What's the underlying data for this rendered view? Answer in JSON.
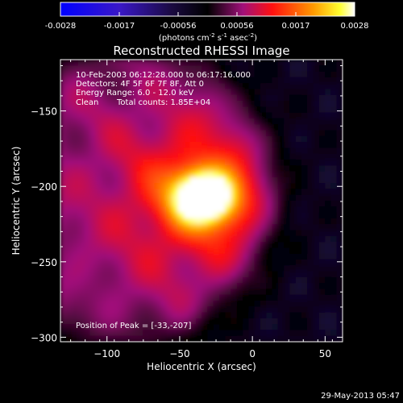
{
  "colorbar": {
    "ticks": [
      "-0.0028",
      "-0.0017",
      "-0.00056",
      "0.00056",
      "0.0017",
      "0.0028"
    ],
    "unit_main": "(photons cm",
    "unit_exp1": "-2",
    "unit_mid": " s",
    "unit_exp2": "-1",
    "unit_tail": " asec",
    "unit_exp3": "-2",
    "unit_close": ")"
  },
  "chart_data": {
    "type": "heatmap",
    "title": "Reconstructed RHESSI Image",
    "xlabel": "Heliocentric X (arcsec)",
    "ylabel": "Heliocentric Y (arcsec)",
    "xlim": [
      -132,
      62
    ],
    "ylim": [
      -303,
      -116
    ],
    "x_ticks": [
      -100,
      -50,
      0,
      50
    ],
    "y_ticks": [
      -150,
      -200,
      -250,
      -300
    ],
    "clim": [
      -0.0028,
      0.0028
    ],
    "colormap": "blue-black-red-yellow-white",
    "peak": {
      "x": -33,
      "y": -207,
      "value": 0.0028
    },
    "annotations": [
      "10-Feb-2003 06:12:28.000 to 06:17:16.000",
      "Detectors: 4F 5F 6F 7F 8F, Att 0",
      "Energy Range: 6.0 - 12.0 keV",
      "Clean",
      "Total counts: 1.85E+04"
    ],
    "peak_label": "Position of Peak = [-33,-207]"
  },
  "footer_timestamp": "29-May-2013 05:47",
  "colors": {
    "background": "#000000",
    "axes": "#ffffff",
    "cmap_neg_low": "#0000ff",
    "cmap_zero": "#000000",
    "cmap_mid": "#ff0000",
    "cmap_high": "#ffff00",
    "cmap_peak": "#ffffff"
  }
}
